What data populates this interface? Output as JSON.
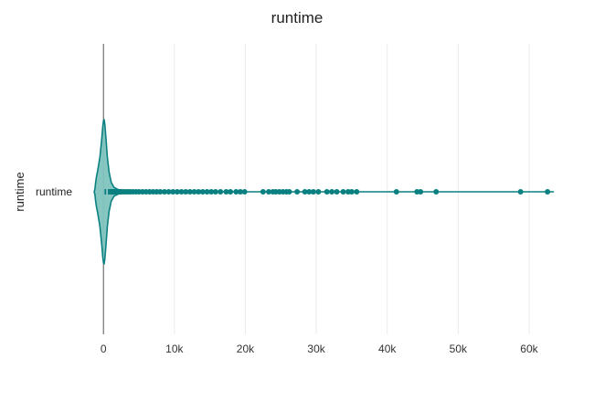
{
  "chart_data": {
    "type": "violin",
    "title": "runtime",
    "ylabel": "runtime",
    "xlabel": "",
    "category": "runtime",
    "orientation": "horizontal",
    "grid": true,
    "xlim": [
      -1700,
      64000
    ],
    "x_ticks": [
      0,
      10000,
      20000,
      30000,
      40000,
      50000,
      60000
    ],
    "x_tick_labels": [
      "0",
      "10k",
      "20k",
      "30k",
      "40k",
      "50k",
      "60k"
    ],
    "colors": {
      "line": "#0a8080",
      "fill": "#7fc4bf",
      "grid": "#ebebeb",
      "zeroline": "#555555"
    },
    "density_profile": [
      {
        "x": -1300,
        "d": 0.0
      },
      {
        "x": -1200,
        "d": 0.04
      },
      {
        "x": -1100,
        "d": 0.13
      },
      {
        "x": -1000,
        "d": 0.2
      },
      {
        "x": -800,
        "d": 0.3
      },
      {
        "x": -500,
        "d": 0.48
      },
      {
        "x": -250,
        "d": 0.72
      },
      {
        "x": -100,
        "d": 0.9
      },
      {
        "x": 0,
        "d": 0.98
      },
      {
        "x": 100,
        "d": 1.0
      },
      {
        "x": 200,
        "d": 0.93
      },
      {
        "x": 350,
        "d": 0.75
      },
      {
        "x": 550,
        "d": 0.48
      },
      {
        "x": 800,
        "d": 0.27
      },
      {
        "x": 1100,
        "d": 0.13
      },
      {
        "x": 1500,
        "d": 0.06
      },
      {
        "x": 2100,
        "d": 0.03
      },
      {
        "x": 2800,
        "d": 0.018
      },
      {
        "x": 3500,
        "d": 0.008
      },
      {
        "x": 4300,
        "d": 0.0
      }
    ],
    "box": {
      "min": 0,
      "q1": 150,
      "median": 500,
      "q3": 2500,
      "max": 63500
    },
    "outliers": [
      2600,
      2900,
      3200,
      3500,
      3800,
      4200,
      4600,
      5000,
      5500,
      6000,
      6500,
      7000,
      7500,
      8000,
      8600,
      9200,
      9800,
      10400,
      11000,
      11600,
      12200,
      12800,
      13400,
      14000,
      14600,
      15200,
      15800,
      16500,
      17300,
      17900,
      18700,
      19300,
      19900,
      22500,
      23300,
      23900,
      24300,
      24800,
      25300,
      25800,
      26200,
      27300,
      28400,
      29000,
      29600,
      30300,
      31500,
      32200,
      32900,
      33800,
      34500,
      35000,
      35700,
      41300,
      44200,
      44700,
      46900,
      58800,
      62600
    ]
  }
}
